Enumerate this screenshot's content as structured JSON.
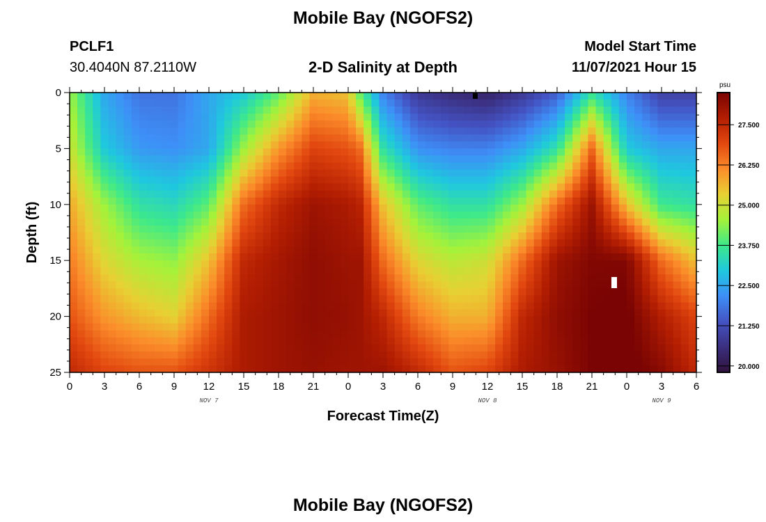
{
  "header": {
    "title": "Mobile Bay (NGOFS2)",
    "station": "PCLF1",
    "coords": "30.4040N  87.2110W",
    "subtitle": "2-D Salinity at Depth",
    "start_label": "Model Start Time",
    "start_value": "11/07/2021 Hour 15"
  },
  "footer": {
    "title": "Mobile Bay (NGOFS2)"
  },
  "chart_data": {
    "type": "heatmap",
    "title": "2-D Salinity at Depth",
    "xlabel": "Forecast Time(Z)",
    "ylabel": "Depth (ft)",
    "xlim": [
      0,
      54
    ],
    "ylim": [
      25,
      0
    ],
    "x_ticks": [
      0,
      3,
      6,
      9,
      12,
      15,
      18,
      21,
      24,
      27,
      30,
      33,
      36,
      39,
      42,
      45,
      48,
      51,
      54
    ],
    "x_tick_labels": [
      "0",
      "3",
      "6",
      "9",
      "12",
      "15",
      "18",
      "21",
      "0",
      "3",
      "6",
      "9",
      "12",
      "15",
      "18",
      "21",
      "0",
      "3",
      "6"
    ],
    "date_labels": [
      {
        "x": 12,
        "label": "NOV 7"
      },
      {
        "x": 36,
        "label": "NOV 8"
      },
      {
        "x": 51,
        "label": "NOV 9"
      }
    ],
    "y_ticks": [
      0,
      5,
      10,
      15,
      20,
      25
    ],
    "y_tick_labels": [
      "0",
      "5",
      "10",
      "15",
      "20",
      "25"
    ],
    "colorbar": {
      "label": "psu",
      "range": [
        19.8,
        28.5
      ],
      "ticks": [
        20.0,
        21.25,
        22.5,
        23.75,
        25.0,
        26.25,
        27.5
      ],
      "tick_labels": [
        "20.000",
        "21.250",
        "22.500",
        "23.750",
        "25.000",
        "26.250",
        "27.500"
      ],
      "colors": [
        "#30123b",
        "#3b2f80",
        "#4454c4",
        "#3e8ff7",
        "#1fc8de",
        "#3ee98a",
        "#a4f23a",
        "#e8d033",
        "#fb8c2a",
        "#e2480f",
        "#b31e02",
        "#7a0403"
      ]
    },
    "times": [
      0,
      3,
      6,
      9,
      12,
      15,
      18,
      21,
      24,
      25,
      27,
      30,
      33,
      36,
      39,
      42,
      45,
      48,
      51,
      54
    ],
    "depths": [
      0,
      5,
      10,
      15,
      20,
      25
    ],
    "values": [
      [
        24.5,
        22.5,
        21.8,
        21.8,
        22.5,
        23.0,
        24.0,
        25.7,
        25.5,
        24.0,
        22.0,
        20.8,
        20.5,
        20.3,
        20.8,
        21.5,
        23.5,
        22.0,
        21.0,
        21.0
      ],
      [
        25.0,
        23.0,
        22.3,
        22.2,
        22.5,
        24.5,
        26.0,
        27.0,
        26.8,
        26.5,
        23.5,
        22.2,
        22.0,
        22.0,
        22.5,
        23.5,
        26.5,
        23.0,
        22.5,
        22.5
      ],
      [
        25.8,
        24.5,
        23.5,
        23.3,
        24.0,
        26.5,
        27.5,
        28.0,
        27.8,
        27.6,
        25.5,
        24.0,
        23.5,
        23.5,
        24.5,
        26.5,
        28.0,
        25.5,
        23.7,
        23.5
      ],
      [
        26.3,
        25.2,
        24.6,
        24.4,
        25.5,
        27.5,
        27.9,
        28.2,
        28.0,
        28.0,
        26.5,
        25.2,
        24.8,
        25.0,
        26.5,
        28.0,
        28.4,
        28.4,
        26.5,
        25.5
      ],
      [
        26.8,
        26.0,
        25.6,
        25.3,
        26.5,
        27.8,
        28.0,
        28.2,
        28.1,
        28.0,
        27.5,
        26.3,
        25.7,
        25.7,
        27.5,
        28.2,
        28.5,
        28.6,
        27.7,
        27.0
      ],
      [
        27.5,
        27.0,
        26.8,
        26.8,
        27.3,
        27.8,
        28.0,
        28.1,
        28.0,
        28.0,
        28.0,
        27.5,
        26.8,
        27.0,
        27.8,
        28.1,
        28.5,
        28.7,
        28.3,
        27.5
      ]
    ]
  }
}
